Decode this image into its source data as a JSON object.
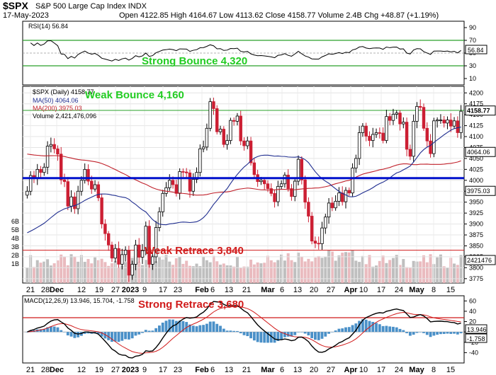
{
  "header": {
    "symbol": "$SPX",
    "name": "S&P 500 Large Cap Index",
    "exchange": "INDX",
    "date": "17-May-2023",
    "ohlc_text": "Open 4122.85  High 4164.67  Low 4113.62  Close 4158.77  Volume 2.4B  Chg +48.87 (+1.19%)"
  },
  "colors": {
    "up": "#000000",
    "down": "#cc1f33",
    "ma50": "#1f2d8f",
    "ma200": "#c0202a",
    "support": "#0010cc",
    "green_line": "#2aa02a",
    "annotation_green": "#22cc22",
    "annotation_red": "#d11b1b",
    "vol_up": "#b8b8b8",
    "vol_down": "#e8b4b8",
    "macd": "#000000",
    "signal": "#d11b1b",
    "hist": "#4a90c8"
  },
  "rsi": {
    "label": "RSI(14) 56.84",
    "value_badge": "56.84",
    "ticks": [
      "90",
      "70",
      "50",
      "30",
      "10"
    ],
    "annotation": "Strong Bounce 4,320"
  },
  "price": {
    "legend": {
      "title": "$SPX (Daily) 4158.77",
      "ma50": "MA(50) 4064.06",
      "ma200": "MA(200) 3975.03",
      "volume": "Volume 2,421,476,096"
    },
    "ticks": [
      "4200",
      "4175",
      "4150",
      "4125",
      "4100",
      "4075",
      "4050",
      "4025",
      "4000",
      "3975",
      "3950",
      "3925",
      "3900",
      "3875",
      "3850",
      "3825",
      "3800",
      "3775"
    ],
    "badges": {
      "close": "4158.77",
      "ma50": "4064.06",
      "ma200": "3975.03",
      "volume": "2421476"
    },
    "vol_ticks": [
      "6B",
      "5B",
      "4B",
      "3B",
      "2B",
      "1B"
    ],
    "annotations": {
      "weak_bounce": "Weak Bounce 4,160",
      "weak_retrace": "Weak Retrace 3,840"
    }
  },
  "macd": {
    "label": "MACD(12,26,9) 13.946, 15.704, -1.758",
    "ticks": [
      "60",
      "40",
      "20",
      "0",
      "-20",
      "-40"
    ],
    "badges": {
      "macd": "13.946",
      "hist": "-1.758"
    },
    "annotation": "Strong Retrace 3,680"
  },
  "x_axis_labels": [
    "21",
    "28",
    "Dec",
    "12",
    "19",
    "27",
    "2023",
    "9",
    "17",
    "23",
    "Feb",
    "6",
    "13",
    "21",
    "Mar",
    "6",
    "13",
    "20",
    "27",
    "Apr",
    "10",
    "17",
    "24",
    "May",
    "8",
    "15"
  ],
  "chart_data": {
    "type": "candlestick",
    "title": "$SPX S&P 500 Large Cap Index",
    "x_range": [
      "2022-11-21",
      "2023-05-17"
    ],
    "price_range": [
      3765,
      4215
    ],
    "horizontal_levels": {
      "support": 4005,
      "green": 4160,
      "red": 3840
    },
    "series": [
      {
        "name": "MA(50)",
        "last": 4064.06
      },
      {
        "name": "MA(200)",
        "last": 3975.03
      }
    ],
    "candles": [
      [
        3966,
        3975
      ],
      [
        3975,
        4011
      ],
      [
        4011,
        4005
      ],
      [
        4005,
        4025
      ],
      [
        4025,
        4018
      ],
      [
        4018,
        4030
      ],
      [
        4030,
        4078
      ],
      [
        4078,
        4082
      ],
      [
        4082,
        4072
      ],
      [
        4072,
        4060
      ],
      [
        4060,
        4001
      ],
      [
        4001,
        3997
      ],
      [
        3997,
        3941
      ],
      [
        3941,
        3962
      ],
      [
        3962,
        3935
      ],
      [
        3935,
        3975
      ],
      [
        3975,
        4000
      ],
      [
        4000,
        4025
      ],
      [
        4025,
        3998
      ],
      [
        3998,
        3980
      ],
      [
        3980,
        3990
      ],
      [
        3990,
        3960
      ],
      [
        3960,
        3900
      ],
      [
        3900,
        3878
      ],
      [
        3878,
        3852
      ],
      [
        3852,
        3822
      ],
      [
        3822,
        3844
      ],
      [
        3844,
        3808
      ],
      [
        3808,
        3830
      ],
      [
        3830,
        3840
      ],
      [
        3840,
        3783
      ],
      [
        3783,
        3808
      ],
      [
        3808,
        3852
      ],
      [
        3852,
        3824
      ],
      [
        3824,
        3839
      ],
      [
        3839,
        3895
      ],
      [
        3895,
        3808
      ],
      [
        3808,
        3825
      ],
      [
        3825,
        3892
      ],
      [
        3892,
        3928
      ],
      [
        3928,
        3970
      ],
      [
        3970,
        3983
      ],
      [
        3983,
        4000
      ],
      [
        4000,
        3990
      ],
      [
        3990,
        3970
      ],
      [
        3970,
        4020
      ],
      [
        4020,
        4019
      ],
      [
        4019,
        4017
      ],
      [
        4017,
        3975
      ],
      [
        3975,
        4002
      ],
      [
        4002,
        4018
      ],
      [
        4018,
        4072
      ],
      [
        4072,
        4076
      ],
      [
        4076,
        4119
      ],
      [
        4119,
        4180
      ],
      [
        4180,
        4164
      ],
      [
        4164,
        4111
      ],
      [
        4111,
        4117
      ],
      [
        4117,
        4082
      ],
      [
        4082,
        4091
      ],
      [
        4091,
        4137
      ],
      [
        4137,
        4135
      ],
      [
        4135,
        4147
      ],
      [
        4147,
        4090
      ],
      [
        4090,
        4079
      ],
      [
        4079,
        4090
      ],
      [
        4090,
        4040
      ],
      [
        4040,
        4013
      ],
      [
        4013,
        3997
      ],
      [
        3997,
        4000
      ],
      [
        4000,
        3992
      ],
      [
        3992,
        3981
      ],
      [
        3981,
        3970
      ],
      [
        3970,
        3951
      ],
      [
        3951,
        3986
      ],
      [
        3986,
        3992
      ],
      [
        3992,
        4012
      ],
      [
        4012,
        3981
      ],
      [
        3981,
        3963
      ],
      [
        3963,
        3998
      ],
      [
        3998,
        4048
      ],
      [
        4048,
        4001
      ],
      [
        4001,
        3950
      ],
      [
        3950,
        3918
      ],
      [
        3918,
        3861
      ],
      [
        3861,
        3856
      ],
      [
        3856,
        3855
      ],
      [
        3855,
        3891
      ],
      [
        3891,
        3916
      ],
      [
        3916,
        3948
      ],
      [
        3948,
        3937
      ],
      [
        3937,
        3952
      ],
      [
        3952,
        3971
      ],
      [
        3971,
        3951
      ],
      [
        3951,
        3977
      ],
      [
        3977,
        3971
      ],
      [
        3971,
        4028
      ],
      [
        4028,
        4050
      ],
      [
        4050,
        4109
      ],
      [
        4109,
        4124
      ],
      [
        4124,
        4101
      ],
      [
        4101,
        4091
      ],
      [
        4091,
        4105
      ],
      [
        4105,
        4109
      ],
      [
        4109,
        4108
      ],
      [
        4108,
        4091
      ],
      [
        4091,
        4146
      ],
      [
        4146,
        4137
      ],
      [
        4137,
        4151
      ],
      [
        4151,
        4154
      ],
      [
        4154,
        4129
      ],
      [
        4129,
        4133
      ],
      [
        4133,
        4071
      ],
      [
        4071,
        4055
      ],
      [
        4055,
        4135
      ],
      [
        4135,
        4169
      ],
      [
        4169,
        4167
      ],
      [
        4167,
        4119
      ],
      [
        4119,
        4090
      ],
      [
        4090,
        4061
      ],
      [
        4061,
        4136
      ],
      [
        4136,
        4138
      ],
      [
        4138,
        4138
      ],
      [
        4138,
        4131
      ],
      [
        4131,
        4138
      ],
      [
        4138,
        4124
      ],
      [
        4124,
        4136
      ],
      [
        4136,
        4109
      ],
      [
        4109,
        4158
      ]
    ]
  }
}
